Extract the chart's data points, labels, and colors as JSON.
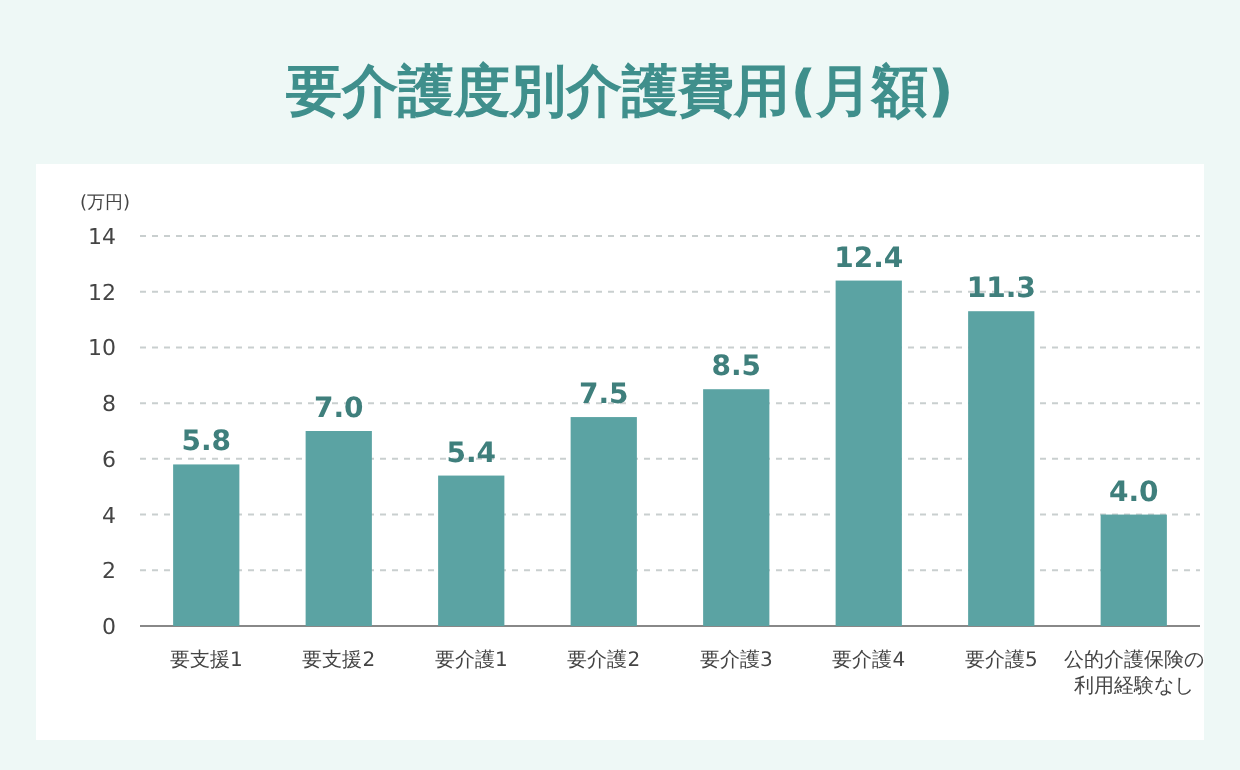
{
  "chart_data": {
    "type": "bar",
    "title": "要介護度別介護費用(月額)",
    "ylabel": "(万円)",
    "categories": [
      "要支援1",
      "要支援2",
      "要介護1",
      "要介護2",
      "要介護3",
      "要介護4",
      "要介護5",
      "公的介護保険の利用経験なし"
    ],
    "values": [
      5.8,
      7.0,
      5.4,
      7.5,
      8.5,
      12.4,
      11.3,
      4.0
    ],
    "value_labels": [
      "5.8",
      "7.0",
      "5.4",
      "7.5",
      "8.5",
      "12.4",
      "11.3",
      "4.0"
    ],
    "color": "#5ba3a3",
    "ylim": [
      0,
      14
    ],
    "yticks": [
      0,
      2,
      4,
      6,
      8,
      10,
      12,
      14
    ],
    "grid": "y"
  }
}
